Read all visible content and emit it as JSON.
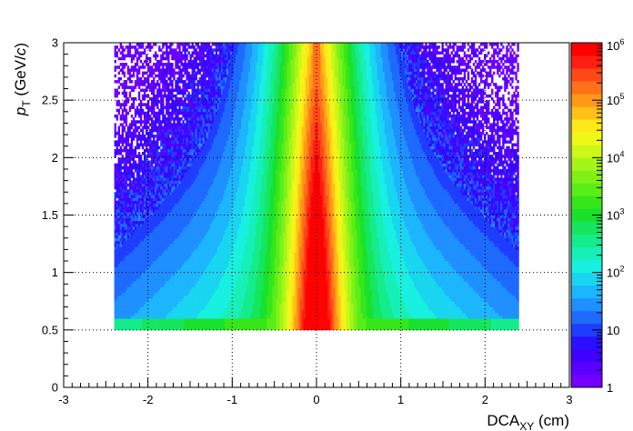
{
  "chart_data": {
    "type": "heatmap",
    "title": "",
    "xlabel": {
      "main": "DCA",
      "sub": "XY",
      "unit": " (cm)"
    },
    "ylabel": {
      "main": "p",
      "sub": "T",
      "unit_open": " (GeV/",
      "unit_var": "c",
      "unit_close": ")"
    },
    "xlim": [
      -3,
      3
    ],
    "ylim": [
      0,
      3
    ],
    "x_ticks": [
      "-3",
      "-2",
      "-1",
      "0",
      "1",
      "2",
      "3"
    ],
    "y_ticks": [
      "0",
      "0.5",
      "1",
      "1.5",
      "2",
      "2.5",
      "3"
    ],
    "grid": true,
    "z_scale": "log",
    "zlim": [
      1,
      1000000
    ],
    "colorbar_ticks": [
      {
        "base": "1",
        "exp": ""
      },
      {
        "base": "10",
        "exp": ""
      },
      {
        "base": "10",
        "exp": "2"
      },
      {
        "base": "10",
        "exp": "3"
      },
      {
        "base": "10",
        "exp": "4"
      },
      {
        "base": "10",
        "exp": "5"
      },
      {
        "base": "10",
        "exp": "6"
      }
    ],
    "data_extent": {
      "x": [
        -2.4,
        2.4
      ],
      "y": [
        0.5,
        3.0
      ]
    },
    "palette": [
      "#7300ff",
      "#5a00ff",
      "#4000ff",
      "#2a10ff",
      "#1f3dff",
      "#1e6aff",
      "#1f90ff",
      "#1cb6ff",
      "#19d6f0",
      "#18f0e0",
      "#16f0b8",
      "#15ec8c",
      "#16e65e",
      "#18e12e",
      "#36e619",
      "#5aee18",
      "#80f018",
      "#a6f518",
      "#ccf718",
      "#eef818",
      "#ffe818",
      "#ffc018",
      "#ff9818",
      "#ff7018",
      "#ff4818",
      "#ff1e10",
      "#ff0000"
    ],
    "notes_peak": {
      "x": 0,
      "description": "sharp central ridge at DCA_XY = 0 reaching ~10^6 counts"
    }
  }
}
